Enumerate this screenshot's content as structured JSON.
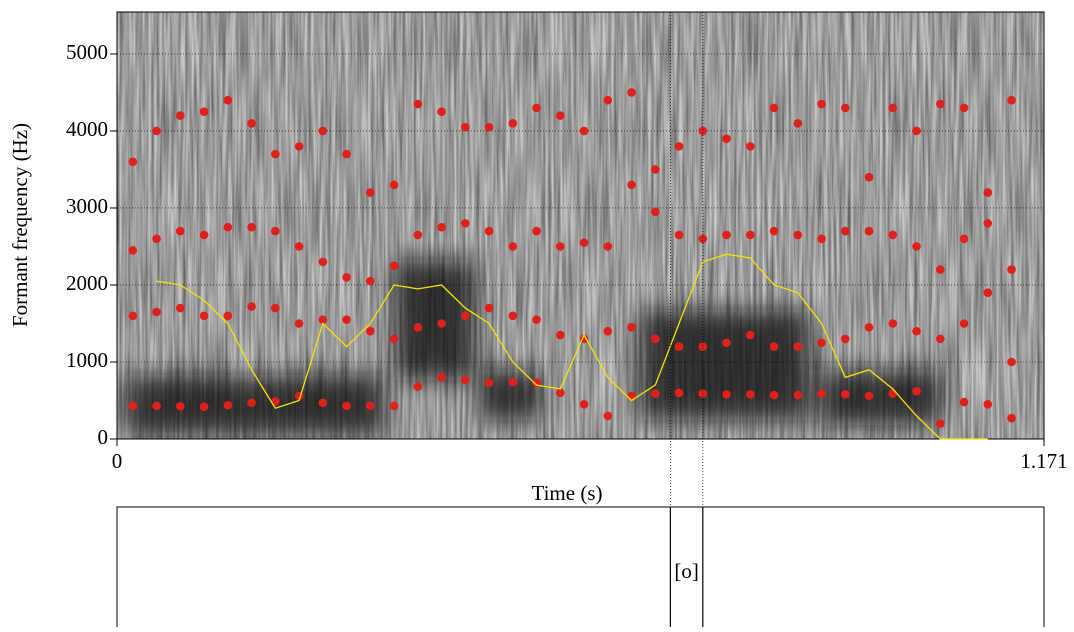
{
  "chart_data": {
    "type": "scatter",
    "x_label": "Time (s)",
    "y_label": "Formant frequency (Hz)",
    "xlim": [
      0,
      1.171
    ],
    "xticks": [
      0,
      1.171
    ],
    "ylim": [
      0,
      5545
    ],
    "yticks": [
      0,
      1000,
      2000,
      3000,
      4000,
      5000
    ],
    "grid": true,
    "x": [
      0.02,
      0.05,
      0.08,
      0.11,
      0.14,
      0.17,
      0.2,
      0.23,
      0.26,
      0.29,
      0.32,
      0.35,
      0.38,
      0.41,
      0.44,
      0.47,
      0.5,
      0.53,
      0.56,
      0.59,
      0.62,
      0.65,
      0.68,
      0.71,
      0.74,
      0.77,
      0.8,
      0.83,
      0.86,
      0.89,
      0.92,
      0.95,
      0.98,
      1.01,
      1.04,
      1.07,
      1.1,
      1.13
    ],
    "series": [
      {
        "color": "#e0201b",
        "values": [
          430,
          430,
          425,
          420,
          440,
          470,
          490,
          560,
          470,
          430,
          430,
          430,
          680,
          800,
          770,
          730,
          740,
          730,
          600,
          450,
          300,
          560,
          590,
          600,
          590,
          580,
          580,
          570,
          570,
          590,
          580,
          560,
          590,
          620,
          200,
          480,
          450,
          270
        ]
      },
      {
        "color": "#e0201b",
        "values": [
          1600,
          1650,
          1700,
          1600,
          1600,
          1720,
          1700,
          1500,
          1550,
          1550,
          1400,
          1300,
          1450,
          1500,
          1600,
          1700,
          1600,
          1550,
          1350,
          1300,
          1400,
          1450,
          1300,
          1200,
          1200,
          1250,
          1350,
          1200,
          1200,
          1250,
          1300,
          1450,
          1500,
          1400,
          1300,
          1500,
          1900,
          1000
        ]
      },
      {
        "color": "#e0201b",
        "values": [
          2450,
          2600,
          2700,
          2650,
          2750,
          2750,
          2700,
          2500,
          2300,
          2100,
          2050,
          2250,
          2650,
          2750,
          2800,
          2700,
          2500,
          2700,
          2500,
          2550,
          2500,
          3300,
          2950,
          2650,
          2600,
          2650,
          2650,
          2700,
          2650,
          2600,
          2700,
          2700,
          2650,
          2500,
          2200,
          2600,
          2800,
          2200
        ]
      },
      {
        "color": "#e0201b",
        "values": [
          3600,
          4000,
          4200,
          4250,
          4400,
          4100,
          3700,
          3800,
          4000,
          3700,
          3200,
          3300,
          4350,
          4250,
          4050,
          4050,
          4100,
          4300,
          4200,
          4000,
          4400,
          4500,
          3500,
          3800,
          4000,
          3900,
          3800,
          4300,
          4100,
          4350,
          4300,
          3400,
          4300,
          4000,
          4350,
          4300,
          3200,
          4400
        ]
      },
      {
        "type": "line",
        "color": "#f2e400",
        "values": [
          null,
          2050,
          2000,
          1800,
          1500,
          900,
          400,
          500,
          1500,
          1200,
          1500,
          2000,
          1950,
          2000,
          1700,
          1500,
          1000,
          700,
          650,
          1350,
          800,
          500,
          700,
          1500,
          2300,
          2400,
          2350,
          2000,
          1900,
          1500,
          800,
          900,
          650,
          300,
          0,
          0,
          0,
          null
        ]
      }
    ],
    "textgrid": {
      "boundaries": [
        0.699,
        0.74
      ],
      "label": "[o]"
    }
  }
}
